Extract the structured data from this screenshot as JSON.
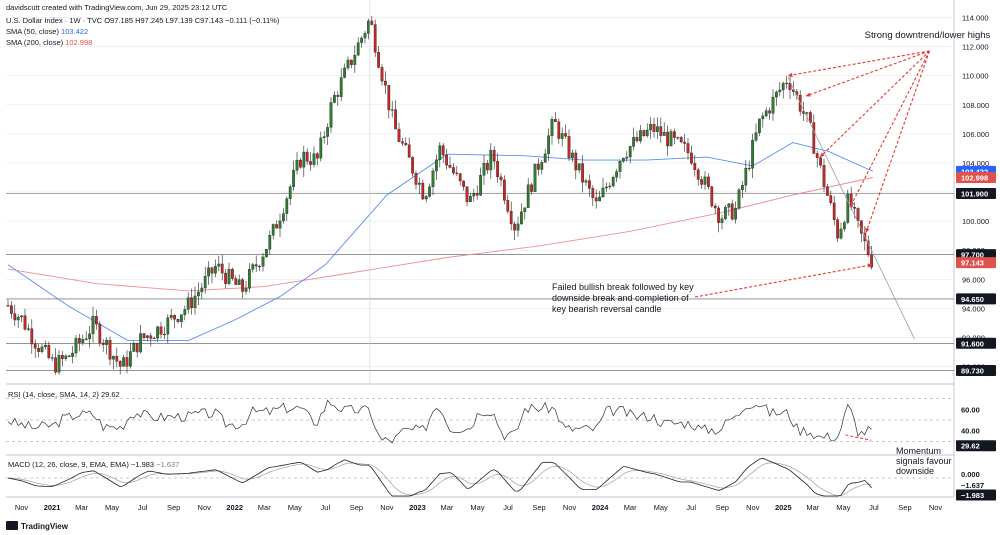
{
  "header": {
    "created_by": "davidscutt created with TradingView.com, Jun 29, 2025 23:12 UTC",
    "symbol_line": "U.S. Dollar Index · 1W · TVC  O97.185  H97.245  L97.139  C97.143  −0.111 (−0.11%)",
    "sma50_label": "SMA (50, close)",
    "sma50_value": "103.422",
    "sma200_label": "SMA (200, close)",
    "sma200_value": "102.998"
  },
  "colors": {
    "up": "#26a69a",
    "up_body": "#2e7d32",
    "down": "#c62828",
    "sma50": "#5b8def",
    "sma200": "#ef8f8f",
    "annotation": "#e53935",
    "grid": "#e0e3eb",
    "text": "#131722"
  },
  "chart_data": {
    "type": "candlestick",
    "title": "U.S. Dollar Index · 1W · TVC",
    "price_axis": {
      "ylim": [
        88.8,
        115.0
      ],
      "ticks": [
        "114.000",
        "112.000",
        "110.000",
        "108.000",
        "106.000",
        "104.000",
        "102.000",
        "100.000",
        "98.000",
        "96.000",
        "94.000",
        "92.000",
        "90.000"
      ]
    },
    "x_axis_ticks": [
      "Nov",
      "2021",
      "Mar",
      "May",
      "Jul",
      "Sep",
      "Nov",
      "2022",
      "Mar",
      "May",
      "Jul",
      "Sep",
      "Nov",
      "2023",
      "Mar",
      "May",
      "Jul",
      "Sep",
      "Nov",
      "2024",
      "Mar",
      "May",
      "Jul",
      "Sep",
      "Nov",
      "2025",
      "Mar",
      "May",
      "Jul",
      "Sep",
      "Nov"
    ],
    "price_path": [
      [
        "2020-10-05",
        94.2
      ],
      [
        "2020-11-01",
        93.3
      ],
      [
        "2020-12-01",
        91.6
      ],
      [
        "2021-01-05",
        90.1
      ],
      [
        "2021-02-01",
        90.6
      ],
      [
        "2021-03-25",
        92.9
      ],
      [
        "2021-05-20",
        89.9
      ],
      [
        "2021-06-25",
        91.8
      ],
      [
        "2021-08-15",
        92.9
      ],
      [
        "2021-09-30",
        94.2
      ],
      [
        "2021-11-25",
        96.9
      ],
      [
        "2022-01-15",
        95.2
      ],
      [
        "2022-03-15",
        98.9
      ],
      [
        "2022-05-15",
        104.5
      ],
      [
        "2022-06-15",
        104.2
      ],
      [
        "2022-07-15",
        108.2
      ],
      [
        "2022-09-28",
        113.9
      ],
      [
        "2022-11-15",
        106.5
      ],
      [
        "2023-01-15",
        101.8
      ],
      [
        "2023-02-15",
        105.0
      ],
      [
        "2023-04-15",
        101.3
      ],
      [
        "2023-05-31",
        104.6
      ],
      [
        "2023-07-15",
        99.6
      ],
      [
        "2023-10-01",
        106.8
      ],
      [
        "2023-12-25",
        101.0
      ],
      [
        "2024-02-15",
        104.7
      ],
      [
        "2024-04-15",
        106.4
      ],
      [
        "2024-06-30",
        104.6
      ],
      [
        "2024-08-28",
        100.3
      ],
      [
        "2024-09-28",
        100.8
      ],
      [
        "2024-11-15",
        106.8
      ],
      [
        "2025-01-10",
        109.9
      ],
      [
        "2025-02-20",
        106.7
      ],
      [
        "2025-03-15",
        103.7
      ],
      [
        "2025-04-20",
        99.1
      ],
      [
        "2025-05-12",
        101.5
      ],
      [
        "2025-05-31",
        99.4
      ],
      [
        "2025-06-29",
        97.14
      ]
    ],
    "sma50_path": [
      [
        "2020-10-05",
        97.0
      ],
      [
        "2021-02-01",
        94.2
      ],
      [
        "2021-06-01",
        91.8
      ],
      [
        "2021-10-01",
        91.8
      ],
      [
        "2022-01-01",
        93.2
      ],
      [
        "2022-04-01",
        94.8
      ],
      [
        "2022-07-01",
        97.0
      ],
      [
        "2022-11-01",
        101.8
      ],
      [
        "2023-03-01",
        104.6
      ],
      [
        "2023-08-01",
        104.5
      ],
      [
        "2023-12-01",
        104.2
      ],
      [
        "2024-04-01",
        104.2
      ],
      [
        "2024-08-01",
        104.4
      ],
      [
        "2024-11-01",
        103.8
      ],
      [
        "2025-01-20",
        105.4
      ],
      [
        "2025-04-01",
        104.8
      ],
      [
        "2025-06-29",
        103.422
      ]
    ],
    "sma200_path": [
      [
        "2020-10-05",
        96.7
      ],
      [
        "2021-04-01",
        95.7
      ],
      [
        "2021-10-01",
        95.2
      ],
      [
        "2022-03-01",
        95.5
      ],
      [
        "2022-09-01",
        96.5
      ],
      [
        "2023-03-01",
        97.5
      ],
      [
        "2023-09-01",
        98.3
      ],
      [
        "2024-03-01",
        99.3
      ],
      [
        "2024-09-01",
        100.6
      ],
      [
        "2025-01-20",
        101.8
      ],
      [
        "2025-06-29",
        102.998
      ]
    ],
    "horizontal_levels": [
      {
        "value": 101.9,
        "label": "101.900"
      },
      {
        "value": 97.7,
        "label": "97.700"
      },
      {
        "value": 94.65,
        "label": "94.650"
      },
      {
        "value": 91.6,
        "label": "91.600"
      },
      {
        "value": 89.73,
        "label": "89.730"
      }
    ],
    "axis_badges": [
      {
        "value": 103.422,
        "label": "103.422",
        "color": "#2962ff"
      },
      {
        "value": 102.998,
        "label": "102.998",
        "color": "#e0524d"
      },
      {
        "value": 97.143,
        "label": "97.143",
        "color": "#e0524d"
      }
    ],
    "downtrend_line": {
      "from": [
        "2025-01-10",
        109.9
      ],
      "to": [
        "2025-09-20",
        91.9
      ]
    },
    "annotations": [
      {
        "text": "Strong downtrend/lower highs",
        "targets": [
          [
            "2025-01-10",
            110.0
          ],
          [
            "2025-02-15",
            108.6
          ],
          [
            "2025-03-15",
            104.4
          ],
          [
            "2025-05-15",
            101.0
          ],
          [
            "2025-06-15",
            99.2
          ]
        ],
        "anchor": [
          "2025-10-20",
          111.7
        ]
      },
      {
        "text": "Failed bullish break followed by key downside break and completion of key bearish reversal candle",
        "lines": [
          "Failed bullish break followed by key",
          "downside break and completion of",
          "key bearish reversal candle"
        ],
        "target": [
          "2025-06-28",
          97.0
        ]
      }
    ],
    "rsi": {
      "label": "RSI (14, close, SMA, 14, 2)",
      "value": "29.62",
      "ylim": [
        20,
        80
      ],
      "ticks": [
        "60.00",
        "40.00",
        "29.62"
      ],
      "levels": [
        70,
        50,
        30
      ],
      "annotation": "Momentum signals favour downside",
      "annotation_lines": [
        "Momentum",
        "signals favour",
        "downside"
      ]
    },
    "macd": {
      "label": "MACD (12, 26, close, 9, EMA, EMA)",
      "value1": "−1.983",
      "value2": "−1.637",
      "ticks": [
        "0.000",
        "−1.637",
        "−1.983"
      ]
    }
  },
  "footer": {
    "brand": "TradingView"
  }
}
